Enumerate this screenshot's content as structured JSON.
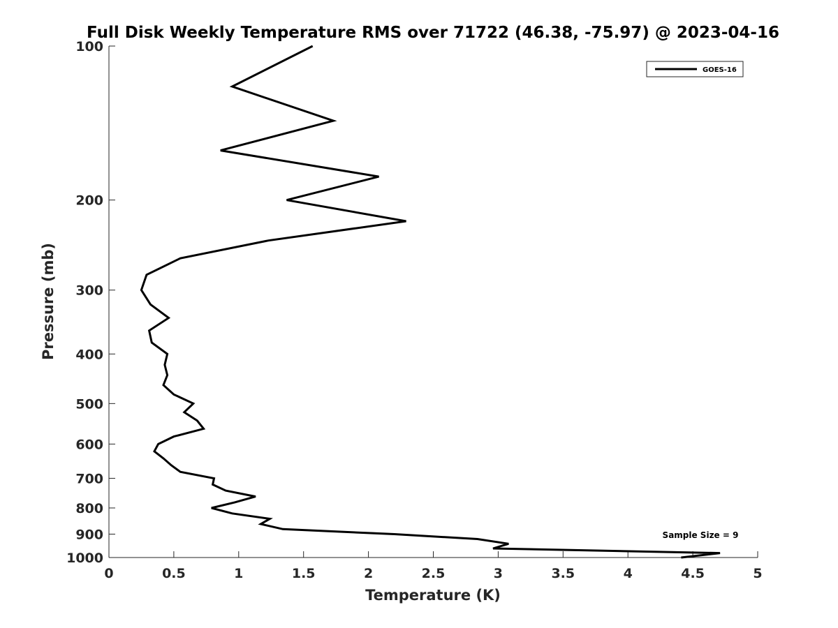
{
  "chart_data": {
    "type": "line",
    "title": "Full Disk Weekly Temperature RMS over 71722 (46.38, -75.97) @ 2023-04-16",
    "xlabel": "Temperature (K)",
    "ylabel": "Pressure (mb)",
    "xlim": [
      0,
      5
    ],
    "ylim": [
      100,
      1000
    ],
    "yscale": "log",
    "y_reversed": true,
    "grid": false,
    "xticks": [
      "0",
      "0.5",
      "1",
      "1.5",
      "2",
      "2.5",
      "3",
      "3.5",
      "4",
      "4.5",
      "5"
    ],
    "xtick_values": [
      0,
      0.5,
      1,
      1.5,
      2,
      2.5,
      3,
      3.5,
      4,
      4.5,
      5
    ],
    "yticks": [
      "100",
      "200",
      "300",
      "400",
      "500",
      "600",
      "700",
      "800",
      "900",
      "1000"
    ],
    "ytick_values": [
      100,
      200,
      300,
      400,
      500,
      600,
      700,
      800,
      900,
      1000
    ],
    "legend_position": "top-right",
    "annotation": "Sample Size = 9",
    "series": [
      {
        "name": "GOES-16",
        "color": "#000000",
        "x": [
          1.57,
          0.95,
          1.73,
          0.86,
          2.08,
          1.37,
          2.29,
          1.23,
          0.55,
          0.29,
          0.25,
          0.32,
          0.46,
          0.31,
          0.33,
          0.45,
          0.43,
          0.45,
          0.42,
          0.5,
          0.65,
          0.58,
          0.68,
          0.73,
          0.5,
          0.38,
          0.35,
          0.42,
          0.48,
          0.55,
          0.81,
          0.8,
          0.9,
          1.13,
          0.97,
          0.79,
          0.95,
          1.24,
          1.17,
          1.34,
          2.2,
          2.84,
          3.08,
          2.96,
          4.71,
          4.41
        ],
        "y": [
          100,
          120,
          140,
          160,
          180,
          200,
          220,
          240,
          260,
          280,
          300,
          320,
          340,
          360,
          380,
          400,
          420,
          440,
          460,
          480,
          500,
          520,
          540,
          560,
          580,
          600,
          620,
          640,
          660,
          680,
          700,
          720,
          740,
          760,
          780,
          800,
          820,
          840,
          860,
          880,
          900,
          920,
          940,
          960,
          980,
          1000
        ]
      }
    ]
  }
}
